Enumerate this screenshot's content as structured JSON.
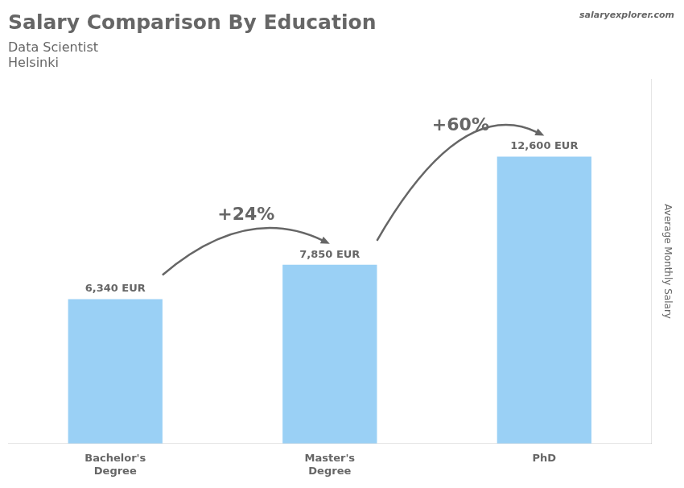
{
  "chart_data": {
    "type": "bar",
    "title": "Salary Comparison By Education",
    "subtitle": [
      "Data Scientist",
      "Helsinki"
    ],
    "watermark": "salaryexplorer.com",
    "ylabel": "Average Monthly Salary",
    "categories": [
      "Bachelor's\nDegree",
      "Master's\nDegree",
      "PhD"
    ],
    "values": [
      6340,
      7850,
      12600
    ],
    "value_labels": [
      "6,340 EUR",
      "7,850 EUR",
      "12,600 EUR"
    ],
    "data_labels": true,
    "annotations": [
      "+24%",
      "+60%"
    ],
    "ylim": [
      0,
      16000
    ],
    "grid": false,
    "tick_labels": "x"
  }
}
